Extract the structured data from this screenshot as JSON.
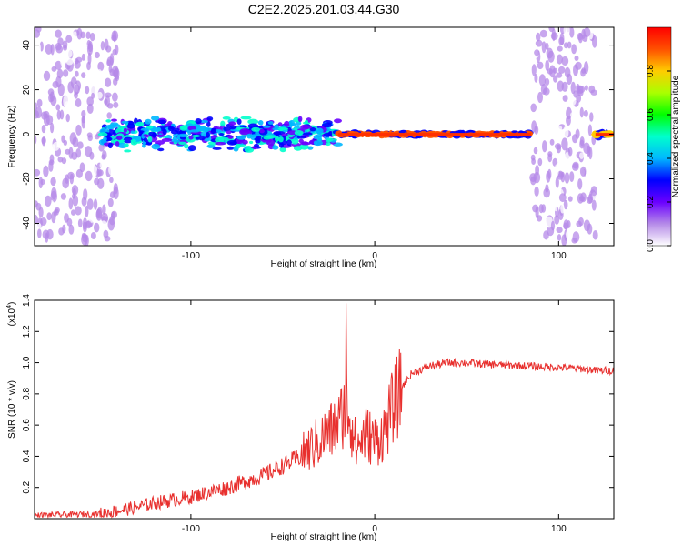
{
  "title": "C2E2.2025.201.03.44.G30",
  "chart_data": [
    {
      "type": "heatmap",
      "xlabel": "Height of straight line (km)",
      "ylabel": "Frequency (Hz)",
      "xlim": [
        -185,
        130
      ],
      "ylim": [
        -50,
        48
      ],
      "xticks": [
        "-100",
        "0",
        "100"
      ],
      "xtick_values": [
        -100,
        0,
        100
      ],
      "yticks": [
        "40",
        "20",
        "0",
        "-20",
        "-40"
      ],
      "ytick_values": [
        40,
        20,
        0,
        -20,
        -40
      ],
      "colorbar": {
        "label": "Normalized spectral amplitude",
        "range": [
          0,
          1
        ],
        "ticks": [
          "0.0",
          "0.2",
          "0.4",
          "0.6",
          "0.8"
        ],
        "tick_values": [
          0.0,
          0.2,
          0.4,
          0.6,
          0.8
        ]
      },
      "regions": [
        {
          "x": [
            -185,
            -140
          ],
          "freq_spread": 48,
          "amplitude": 0.15
        },
        {
          "x": [
            -148,
            -20
          ],
          "freq_spread": 8,
          "amplitude": 0.45
        },
        {
          "x": [
            -20,
            85
          ],
          "freq_spread": 1,
          "amplitude": 0.9
        },
        {
          "x": [
            86,
            120
          ],
          "freq_spread": 48,
          "amplitude": 0.15
        },
        {
          "x": [
            120,
            130
          ],
          "freq_spread": 1.5,
          "amplitude": 0.85
        }
      ]
    },
    {
      "type": "line",
      "xlabel": "Height of straight line (km)",
      "ylabel": "SNR (10 * v/v)",
      "y_multiplier": "(x10",
      "y_multiplier_exp": "4",
      "y_multiplier_close": ")",
      "xlim": [
        -185,
        130
      ],
      "ylim": [
        0,
        1.4
      ],
      "xticks": [
        "-100",
        "0",
        "100"
      ],
      "xtick_values": [
        -100,
        0,
        100
      ],
      "yticks": [
        "1.4",
        "1.2",
        "1.0",
        "0.8",
        "0.6",
        "0.4",
        "0.2"
      ],
      "ytick_values": [
        1.4,
        1.2,
        1.0,
        0.8,
        0.6,
        0.4,
        0.2
      ],
      "color": "#e8302e",
      "series": [
        {
          "x": [
            -185,
            -150,
            -135,
            -120,
            -100,
            -80,
            -60,
            -40,
            -30,
            -20,
            -15,
            -10,
            -5,
            0,
            5,
            10,
            15,
            20,
            30,
            40,
            50,
            60,
            80,
            100,
            115,
            120,
            130
          ],
          "y": [
            0.02,
            0.03,
            0.06,
            0.1,
            0.14,
            0.2,
            0.28,
            0.4,
            0.5,
            0.6,
            0.75,
            0.45,
            0.55,
            0.5,
            0.55,
            0.72,
            0.85,
            0.93,
            0.98,
            1.0,
            1.0,
            0.99,
            0.98,
            0.97,
            0.96,
            0.95,
            0.95
          ]
        }
      ]
    }
  ]
}
